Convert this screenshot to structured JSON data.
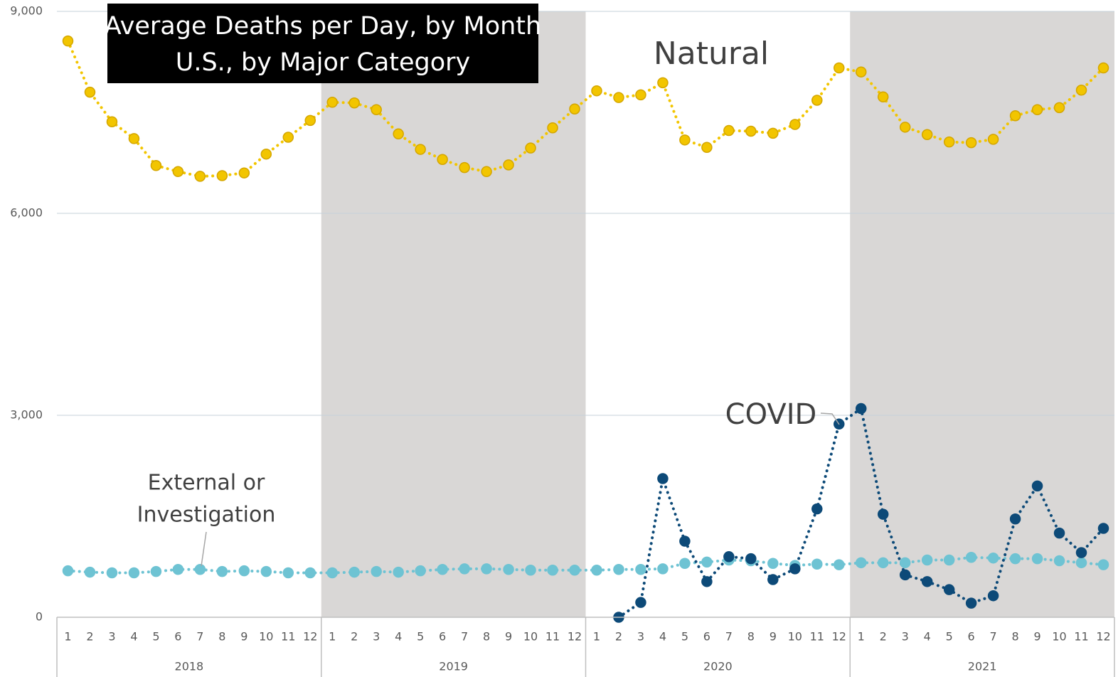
{
  "chart_data": {
    "type": "line",
    "title": "Average Deaths per Day, by Month",
    "subtitle": "U.S., by Major Category",
    "categories": [
      "1",
      "2",
      "3",
      "4",
      "5",
      "6",
      "7",
      "8",
      "9",
      "10",
      "11",
      "12",
      "1",
      "2",
      "3",
      "4",
      "5",
      "6",
      "7",
      "8",
      "9",
      "10",
      "11",
      "12",
      "1",
      "2",
      "3",
      "4",
      "5",
      "6",
      "7",
      "8",
      "9",
      "10",
      "11",
      "12",
      "1",
      "2",
      "3",
      "4",
      "5",
      "6",
      "7",
      "8",
      "9",
      "10",
      "11",
      "12"
    ],
    "years": [
      "2018",
      "2019",
      "2020",
      "2021"
    ],
    "ylim": [
      0,
      9000
    ],
    "yticks": [
      0,
      {
        "value": 3000,
        "label": "3,000"
      },
      {
        "value": 6000,
        "label": "6,000"
      },
      {
        "value": 9000,
        "label": "9,000"
      }
    ],
    "grid": true,
    "series": [
      {
        "name": "Natural",
        "color": "#f2c500",
        "values": [
          8560,
          7800,
          7360,
          7110,
          6710,
          6620,
          6550,
          6560,
          6600,
          6880,
          7130,
          7380,
          7650,
          7640,
          7540,
          7180,
          6950,
          6800,
          6680,
          6620,
          6720,
          6970,
          7270,
          7550,
          7820,
          7720,
          7760,
          7940,
          7090,
          6980,
          7230,
          7220,
          7190,
          7320,
          7680,
          8160,
          8100,
          7730,
          7280,
          7170,
          7060,
          7050,
          7100,
          7450,
          7540,
          7570,
          7830,
          8160
        ]
      },
      {
        "name": "External or Investigation",
        "color": "#6ec3d3",
        "values": [
          690,
          670,
          660,
          660,
          680,
          710,
          710,
          680,
          690,
          680,
          660,
          660,
          660,
          670,
          680,
          670,
          690,
          710,
          720,
          720,
          710,
          700,
          700,
          700,
          700,
          710,
          710,
          720,
          800,
          820,
          850,
          840,
          800,
          770,
          790,
          780,
          810,
          810,
          810,
          850,
          850,
          890,
          880,
          870,
          870,
          840,
          810,
          780
        ]
      },
      {
        "name": "COVID",
        "color": "#0d4a78",
        "values": [
          null,
          null,
          null,
          null,
          null,
          null,
          null,
          null,
          null,
          null,
          null,
          null,
          null,
          null,
          null,
          null,
          null,
          null,
          null,
          null,
          null,
          null,
          null,
          null,
          null,
          0,
          220,
          2060,
          1130,
          530,
          900,
          870,
          560,
          720,
          1610,
          2870,
          3100,
          1530,
          630,
          530,
          410,
          210,
          320,
          1460,
          1950,
          1250,
          960,
          1320
        ]
      }
    ],
    "annotations": {
      "natural": "Natural",
      "covid": "COVID",
      "external": [
        "External or",
        "Investigation"
      ]
    }
  }
}
